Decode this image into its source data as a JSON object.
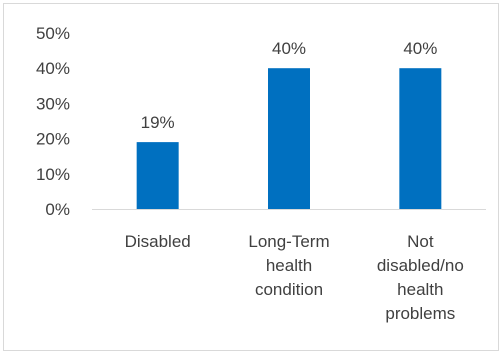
{
  "chart_data": {
    "type": "bar",
    "categories": [
      [
        "Disabled"
      ],
      [
        "Long-Term",
        "health",
        "condition"
      ],
      [
        "Not",
        "disabled/no",
        "health",
        "problems"
      ]
    ],
    "values": [
      19,
      40,
      40
    ],
    "data_labels": [
      "19%",
      "40%",
      "40%"
    ],
    "y_ticks": [
      "0%",
      "10%",
      "20%",
      "30%",
      "40%",
      "50%"
    ],
    "ylim": [
      0,
      50
    ],
    "grid": false,
    "legend": "none",
    "bar_color": "#0070C0",
    "axis_color": "#d9d9d9",
    "text_color": "#404040"
  }
}
